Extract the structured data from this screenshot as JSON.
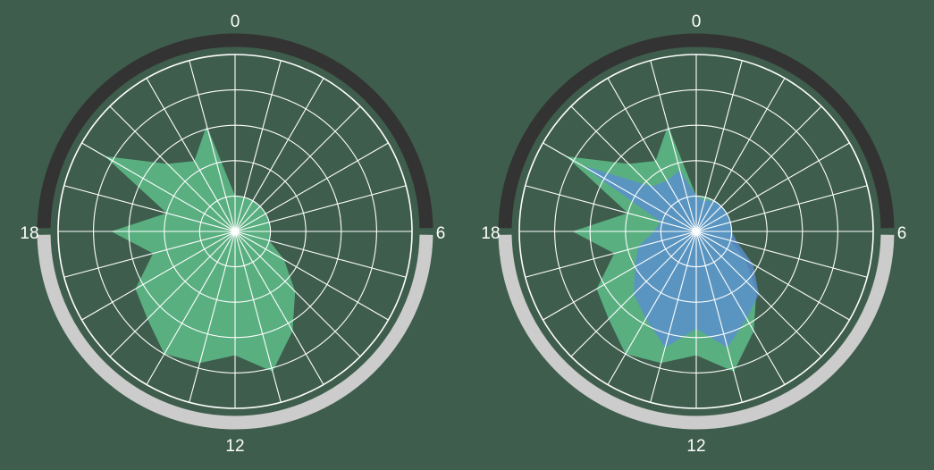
{
  "colors": {
    "background": "#3e5d4c",
    "night_arc": "#333333",
    "day_arc": "#cccccc",
    "grid": "#ffffff",
    "series_green": "#5ebd8a",
    "series_blue": "#5a8fd0"
  },
  "chart_data": [
    {
      "type": "radar",
      "title": "",
      "hour_labels": [
        "0",
        "6",
        "12",
        "18"
      ],
      "r_max": 10,
      "grid": true,
      "sectors": 24,
      "rings": 5,
      "series": [
        {
          "color": "#5ebd8a",
          "values": [
            2,
            2,
            2,
            2,
            2,
            2,
            2,
            2,
            3.2,
            4.8,
            6.5,
            8.2,
            7.0,
            7.7,
            8.0,
            7.0,
            6.5,
            4.8,
            7.0,
            4.0,
            8.5,
            5.4,
            4.6,
            6.2
          ]
        }
      ]
    },
    {
      "type": "radar",
      "title": "",
      "hour_labels": [
        "0",
        "6",
        "12",
        "18"
      ],
      "r_max": 10,
      "grid": true,
      "sectors": 24,
      "rings": 5,
      "series": [
        {
          "color": "#5ebd8a",
          "values": [
            2,
            2,
            2,
            2,
            2,
            2,
            2,
            2,
            3.2,
            4.8,
            6.5,
            8.2,
            7.0,
            7.7,
            8.0,
            7.0,
            6.5,
            4.8,
            7.0,
            4.0,
            8.5,
            5.4,
            4.6,
            6.2
          ]
        },
        {
          "color": "#5a8fd0",
          "values": [
            2,
            1.8,
            2,
            2,
            2,
            2,
            2,
            2.4,
            3.7,
            5.0,
            5.7,
            6.8,
            5.5,
            6.8,
            5.7,
            5.0,
            4.0,
            3.4,
            2.4,
            2.1,
            7.5,
            3.6,
            3.3,
            3.6
          ]
        }
      ]
    }
  ]
}
